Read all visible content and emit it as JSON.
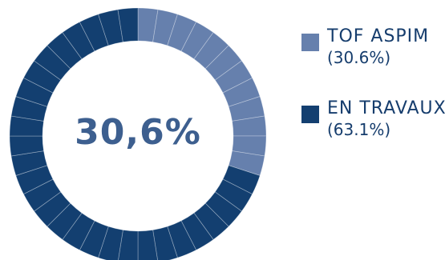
{
  "chart_data": {
    "type": "pie",
    "center_label": "30,6%",
    "colors": {
      "slice_1": "#6680ad",
      "slice_2": "#133f70"
    },
    "slices": [
      {
        "name": "TOF ASPIM",
        "value_label": "(30.6%)",
        "value": 30.6,
        "color": "#6680ad"
      },
      {
        "name": "EN TRAVAUX",
        "value_label": "(63.1%)",
        "value": 63.1,
        "color": "#133f70"
      }
    ],
    "legend_position": "right"
  }
}
